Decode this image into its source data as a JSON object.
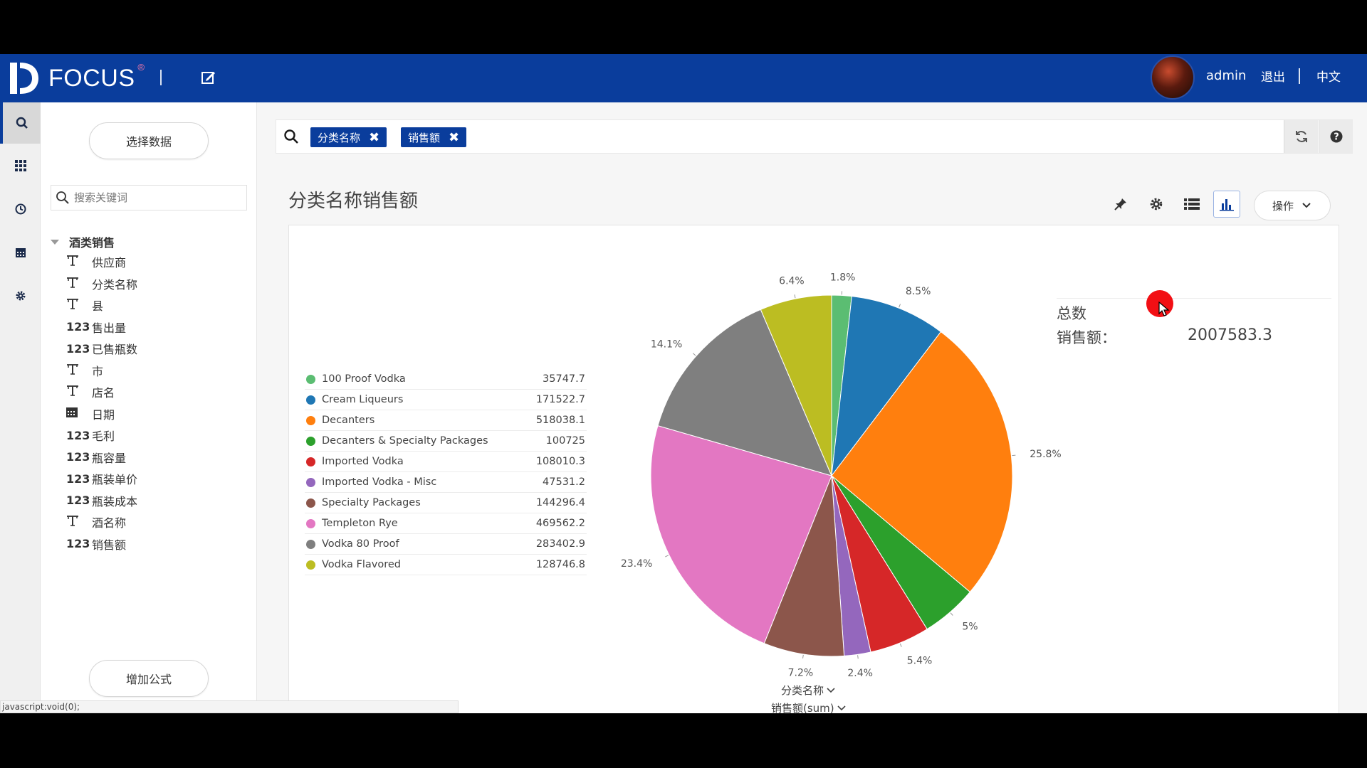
{
  "header": {
    "brand": "FOCUS",
    "brand_mark": "®",
    "user": "admin",
    "logout": "退出",
    "language": "中文"
  },
  "sidebar": {
    "select_data_button": "选择数据",
    "search_placeholder": "搜索关键词",
    "tree_root": "酒类销售",
    "fields": [
      {
        "type": "T",
        "label": "供应商"
      },
      {
        "type": "T",
        "label": "分类名称"
      },
      {
        "type": "T",
        "label": "县"
      },
      {
        "type": "123",
        "label": "售出量"
      },
      {
        "type": "123",
        "label": "已售瓶数"
      },
      {
        "type": "T",
        "label": "市"
      },
      {
        "type": "T",
        "label": "店名"
      },
      {
        "type": "cal",
        "label": "日期"
      },
      {
        "type": "123",
        "label": "毛利"
      },
      {
        "type": "123",
        "label": "瓶容量"
      },
      {
        "type": "123",
        "label": "瓶装单价"
      },
      {
        "type": "123",
        "label": "瓶装成本"
      },
      {
        "type": "T",
        "label": "酒名称"
      },
      {
        "type": "123",
        "label": "销售额"
      }
    ],
    "add_formula_button": "增加公式",
    "status_url": "javascript:void(0);"
  },
  "searchbar": {
    "chips": [
      "分类名称",
      "销售额"
    ]
  },
  "panel": {
    "title": "分类名称销售额",
    "ops_button": "操作",
    "total_label": "总数",
    "total_field": "销售额：",
    "total_value": "2007583.3",
    "x_axis_selector": "分类名称",
    "y_axis_selector": "销售额(sum)"
  },
  "chart_data": {
    "type": "pie",
    "title": "分类名称销售额",
    "categories": [
      "100 Proof Vodka",
      "Cream Liqueurs",
      "Decanters",
      "Decanters & Specialty Packages",
      "Imported Vodka",
      "Imported Vodka - Misc",
      "Specialty Packages",
      "Templeton Rye",
      "Vodka 80 Proof",
      "Vodka Flavored"
    ],
    "values": [
      35747.7,
      171522.7,
      518038.1,
      100725,
      108010.3,
      47531.2,
      144296.4,
      469562.2,
      283402.9,
      128746.8
    ],
    "value_labels": [
      "35747.7",
      "171522.7",
      "518038.1",
      "100725",
      "108010.3",
      "47531.2",
      "144296.4",
      "469562.2",
      "283402.9",
      "128746.8"
    ],
    "percent_labels": [
      "1.8%",
      "8.5%",
      "25.8%",
      "5%",
      "5.4%",
      "2.4%",
      "7.2%",
      "23.4%",
      "14.1%",
      "6.4%"
    ],
    "colors": [
      "#5bbd72",
      "#1f77b4",
      "#ff7f0e",
      "#2ca02c",
      "#d62728",
      "#9467bd",
      "#8c564b",
      "#e377c2",
      "#7f7f7f",
      "#bcbd22"
    ],
    "legend_position": "left",
    "xlabel": "分类名称",
    "ylabel": "销售额(sum)"
  }
}
